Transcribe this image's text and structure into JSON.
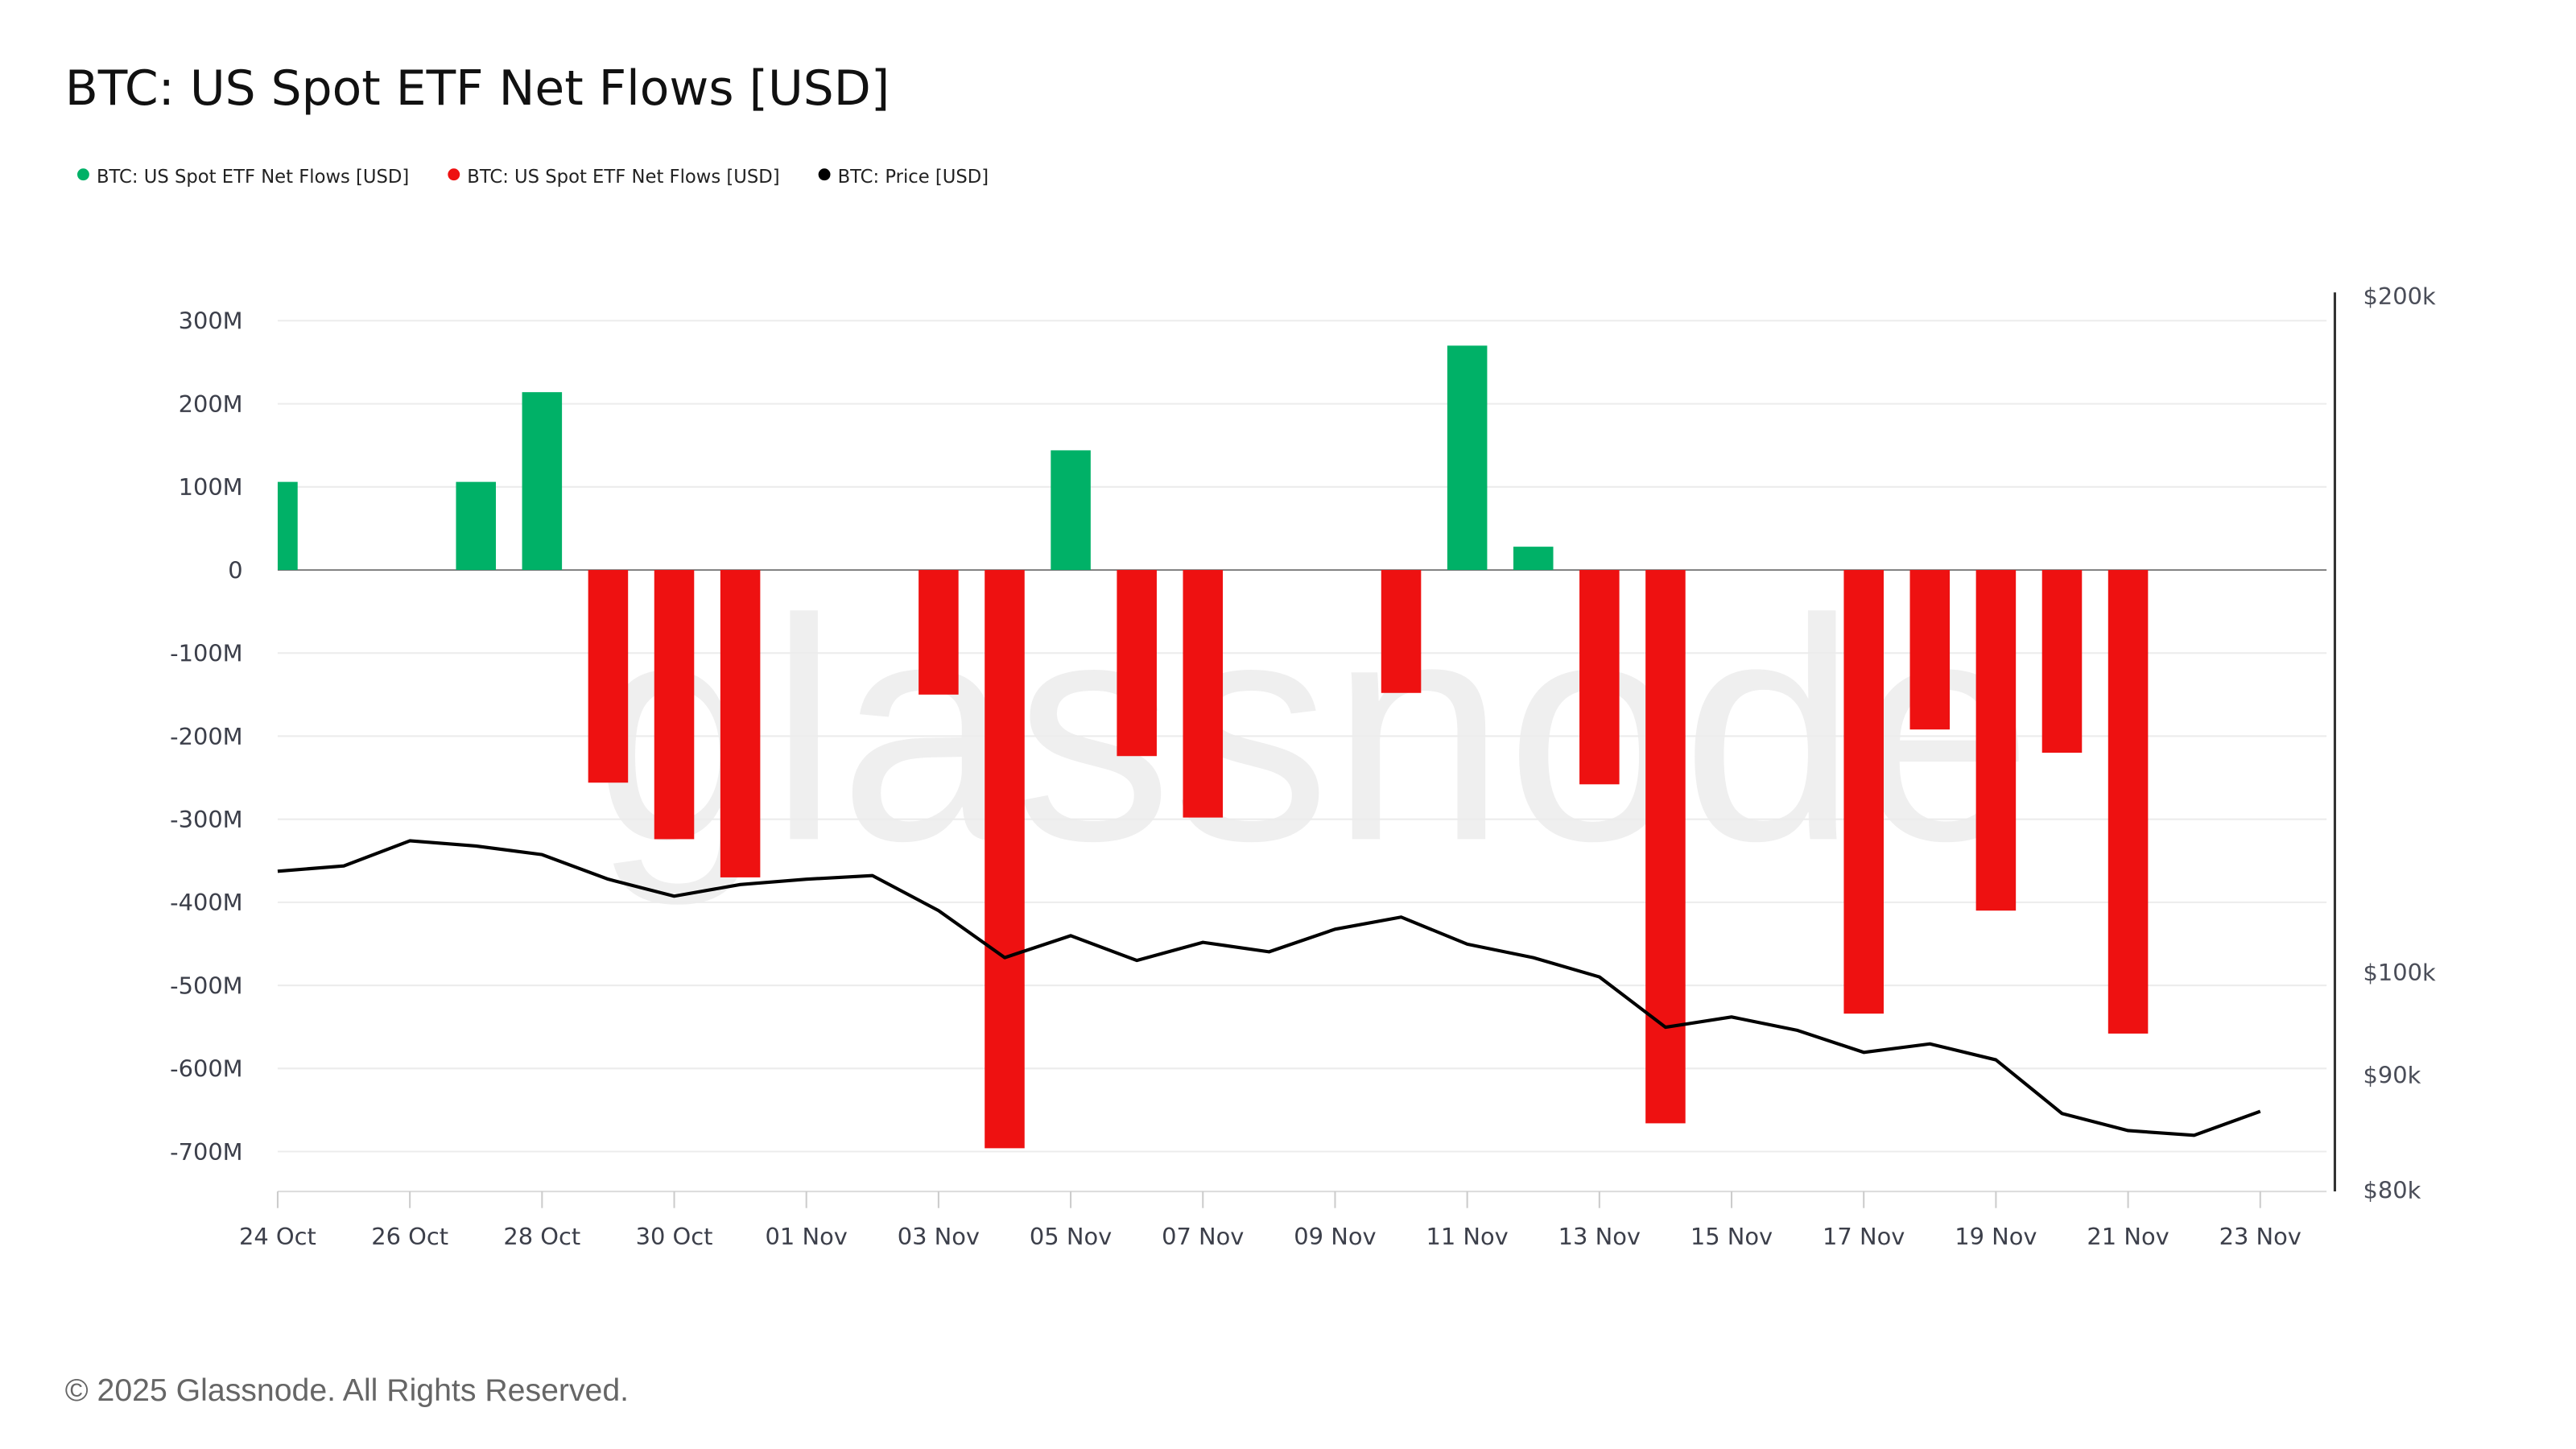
{
  "title": "BTC: US Spot ETF Net Flows [USD]",
  "footer": "© 2025 Glassnode. All Rights Reserved.",
  "watermark": "glassnode",
  "legend": [
    {
      "label": "BTC: US Spot ETF Net Flows [USD]",
      "color": "#00b167"
    },
    {
      "label": "BTC: US Spot ETF Net Flows [USD]",
      "color": "#ee1111"
    },
    {
      "label": "BTC: Price [USD]",
      "color": "#000000"
    }
  ],
  "chart_data": {
    "type": "bar",
    "title": "BTC: US Spot ETF Net Flows [USD]",
    "positive_color": "#00b167",
    "negative_color": "#ee1111",
    "price_color": "#000000",
    "grid": true,
    "legend_placement": "top-left",
    "x": [
      "2025-10-24",
      "2025-10-25",
      "2025-10-26",
      "2025-10-27",
      "2025-10-28",
      "2025-10-29",
      "2025-10-30",
      "2025-10-31",
      "2025-11-01",
      "2025-11-02",
      "2025-11-03",
      "2025-11-04",
      "2025-11-05",
      "2025-11-06",
      "2025-11-07",
      "2025-11-08",
      "2025-11-09",
      "2025-11-10",
      "2025-11-11",
      "2025-11-12",
      "2025-11-13",
      "2025-11-14",
      "2025-11-15",
      "2025-11-16",
      "2025-11-17",
      "2025-11-18",
      "2025-11-19",
      "2025-11-20",
      "2025-11-21",
      "2025-11-22",
      "2025-11-23"
    ],
    "x_tick_labels": [
      "24 Oct",
      "26 Oct",
      "28 Oct",
      "30 Oct",
      "01 Nov",
      "03 Nov",
      "05 Nov",
      "07 Nov",
      "09 Nov",
      "11 Nov",
      "13 Nov",
      "15 Nov",
      "17 Nov",
      "19 Nov",
      "21 Nov",
      "23 Nov"
    ],
    "series": [
      {
        "name": "BTC: US Spot ETF Net Flows [USD]",
        "axis": "left",
        "unit": "M USD",
        "values": [
          106,
          0,
          0,
          106,
          214,
          -256,
          -324,
          -370,
          0,
          0,
          -150,
          -696,
          144,
          -224,
          -298,
          0,
          0,
          -148,
          270,
          28,
          -258,
          -666,
          0,
          0,
          -534,
          -192,
          -410,
          -220,
          -558,
          0,
          0
        ]
      },
      {
        "name": "BTC: Price [USD]",
        "axis": "right",
        "type": "line",
        "unit": "k USD",
        "values": [
          110.9,
          111.5,
          114.4,
          113.8,
          112.8,
          110.0,
          108.1,
          109.4,
          110.0,
          110.4,
          106.5,
          101.5,
          103.8,
          101.2,
          103.1,
          102.1,
          104.5,
          105.8,
          102.9,
          101.5,
          99.5,
          94.5,
          95.5,
          94.2,
          92.1,
          92.9,
          91.4,
          86.5,
          85.0,
          84.6,
          86.7
        ]
      }
    ],
    "y_left": {
      "ylim": [
        -750,
        320
      ],
      "ticks": [
        300,
        200,
        100,
        0,
        -100,
        -200,
        -300,
        -400,
        -500,
        -600,
        -700
      ],
      "tick_labels": [
        "300M",
        "200M",
        "100M",
        "0",
        "-100M",
        "-200M",
        "-300M",
        "-400M",
        "-500M",
        "-600M",
        "-700M"
      ]
    },
    "y_right": {
      "scale": "log",
      "ylim": [
        80,
        200
      ],
      "ticks": [
        200,
        100,
        90,
        80
      ],
      "tick_labels": [
        "$200k",
        "$100k",
        "$90k",
        "$80k"
      ]
    }
  }
}
